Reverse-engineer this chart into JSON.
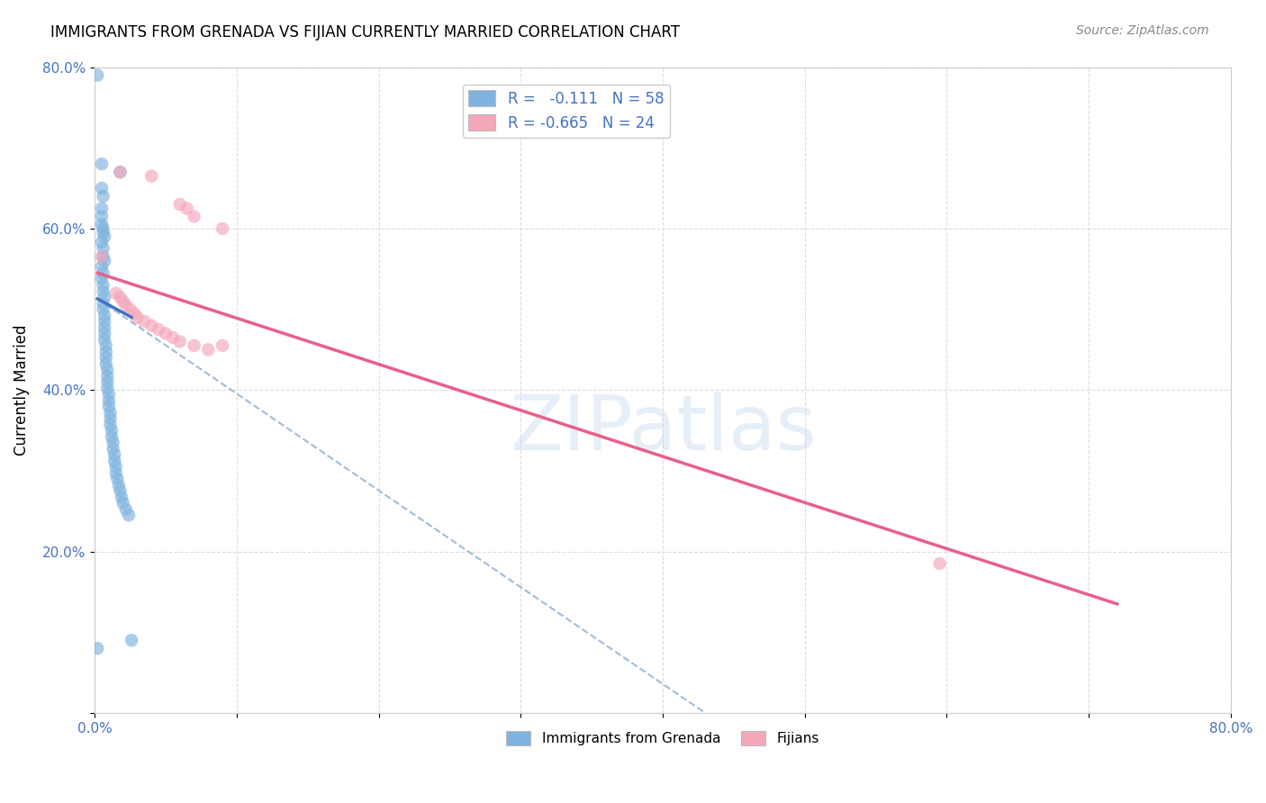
{
  "title": "IMMIGRANTS FROM GRENADA VS FIJIAN CURRENTLY MARRIED CORRELATION CHART",
  "source": "Source: ZipAtlas.com",
  "ylabel": "Currently Married",
  "watermark": "ZIPatlas",
  "xlim": [
    0.0,
    0.8
  ],
  "ylim": [
    0.0,
    0.8
  ],
  "blue_color": "#7eb3e0",
  "pink_color": "#f4a7b9",
  "blue_line_color": "#4472c4",
  "pink_line_color": "#e8608a",
  "blue_dashed_color": "#a0bcd8",
  "grenada_scatter": [
    [
      0.002,
      0.79
    ],
    [
      0.005,
      0.68
    ],
    [
      0.018,
      0.67
    ],
    [
      0.005,
      0.65
    ],
    [
      0.006,
      0.64
    ],
    [
      0.005,
      0.625
    ],
    [
      0.005,
      0.615
    ],
    [
      0.005,
      0.605
    ],
    [
      0.006,
      0.6
    ],
    [
      0.006,
      0.595
    ],
    [
      0.007,
      0.59
    ],
    [
      0.005,
      0.583
    ],
    [
      0.006,
      0.575
    ],
    [
      0.006,
      0.565
    ],
    [
      0.007,
      0.56
    ],
    [
      0.005,
      0.553
    ],
    [
      0.006,
      0.545
    ],
    [
      0.005,
      0.538
    ],
    [
      0.006,
      0.53
    ],
    [
      0.006,
      0.522
    ],
    [
      0.007,
      0.515
    ],
    [
      0.006,
      0.507
    ],
    [
      0.006,
      0.5
    ],
    [
      0.007,
      0.492
    ],
    [
      0.007,
      0.485
    ],
    [
      0.007,
      0.477
    ],
    [
      0.007,
      0.47
    ],
    [
      0.007,
      0.462
    ],
    [
      0.008,
      0.455
    ],
    [
      0.008,
      0.447
    ],
    [
      0.008,
      0.44
    ],
    [
      0.008,
      0.432
    ],
    [
      0.009,
      0.425
    ],
    [
      0.009,
      0.417
    ],
    [
      0.009,
      0.41
    ],
    [
      0.009,
      0.402
    ],
    [
      0.01,
      0.395
    ],
    [
      0.01,
      0.387
    ],
    [
      0.01,
      0.38
    ],
    [
      0.011,
      0.372
    ],
    [
      0.011,
      0.365
    ],
    [
      0.011,
      0.357
    ],
    [
      0.012,
      0.35
    ],
    [
      0.012,
      0.342
    ],
    [
      0.013,
      0.335
    ],
    [
      0.013,
      0.327
    ],
    [
      0.014,
      0.32
    ],
    [
      0.014,
      0.312
    ],
    [
      0.015,
      0.305
    ],
    [
      0.015,
      0.297
    ],
    [
      0.016,
      0.29
    ],
    [
      0.017,
      0.282
    ],
    [
      0.018,
      0.275
    ],
    [
      0.019,
      0.267
    ],
    [
      0.02,
      0.26
    ],
    [
      0.022,
      0.252
    ],
    [
      0.024,
      0.245
    ],
    [
      0.026,
      0.09
    ],
    [
      0.002,
      0.08
    ]
  ],
  "fijian_scatter": [
    [
      0.005,
      0.565
    ],
    [
      0.015,
      0.52
    ],
    [
      0.018,
      0.515
    ],
    [
      0.02,
      0.51
    ],
    [
      0.022,
      0.505
    ],
    [
      0.025,
      0.5
    ],
    [
      0.028,
      0.495
    ],
    [
      0.03,
      0.49
    ],
    [
      0.035,
      0.485
    ],
    [
      0.04,
      0.48
    ],
    [
      0.045,
      0.475
    ],
    [
      0.05,
      0.47
    ],
    [
      0.055,
      0.465
    ],
    [
      0.06,
      0.46
    ],
    [
      0.07,
      0.455
    ],
    [
      0.08,
      0.45
    ],
    [
      0.018,
      0.67
    ],
    [
      0.04,
      0.665
    ],
    [
      0.06,
      0.63
    ],
    [
      0.065,
      0.625
    ],
    [
      0.07,
      0.615
    ],
    [
      0.09,
      0.6
    ],
    [
      0.595,
      0.185
    ],
    [
      0.09,
      0.455
    ]
  ],
  "blue_trendline_solid": [
    [
      0.002,
      0.513
    ],
    [
      0.026,
      0.49
    ]
  ],
  "blue_trendline_dashed": [
    [
      0.002,
      0.513
    ],
    [
      0.43,
      0.0
    ]
  ],
  "pink_trendline": [
    [
      0.002,
      0.545
    ],
    [
      0.72,
      0.135
    ]
  ]
}
